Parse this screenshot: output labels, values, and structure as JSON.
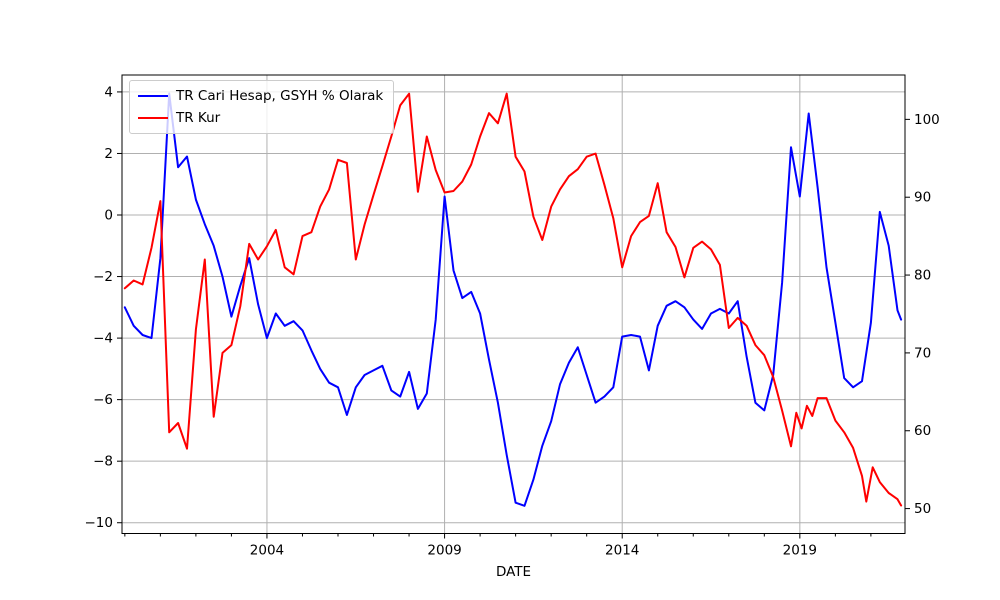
{
  "chart_data": {
    "type": "line",
    "title": "",
    "xlabel": "DATE",
    "grid": true,
    "legend_position": "upper-left",
    "xlim": [
      1999.92,
      2021.96
    ],
    "x_tick_values": [
      2004,
      2009,
      2014,
      2019
    ],
    "x_tick_labels": [
      "2004",
      "2009",
      "2014",
      "2019"
    ],
    "x_minor_tick_years": [
      2000,
      2001,
      2002,
      2003,
      2005,
      2006,
      2007,
      2008,
      2010,
      2011,
      2012,
      2013,
      2015,
      2016,
      2017,
      2018,
      2020,
      2021
    ],
    "left_axis": {
      "lim": [
        -10.35,
        4.55
      ],
      "tick_values": [
        4,
        2,
        0,
        -2,
        -4,
        -6,
        -8,
        -10
      ],
      "tick_labels": [
        "4",
        "2",
        "0",
        "−2",
        "−4",
        "−6",
        "−8",
        "−10"
      ]
    },
    "right_axis": {
      "lim": [
        46.8,
        105.7
      ],
      "tick_values": [
        100,
        90,
        80,
        70,
        60,
        50
      ],
      "tick_labels": [
        "100",
        "90",
        "80",
        "70",
        "60",
        "50"
      ]
    },
    "colors": {
      "grid": "#b0b0b0",
      "spine": "#000000",
      "blue_series": "#0000ff",
      "red_series": "#ff0000"
    },
    "series": [
      {
        "name": "TR Cari Hesap, GSYH % Olarak",
        "color": "#0000ff",
        "axis": "left",
        "points": [
          [
            2000.0,
            -3.0
          ],
          [
            2000.25,
            -3.6
          ],
          [
            2000.5,
            -3.9
          ],
          [
            2000.75,
            -4.0
          ],
          [
            2001.0,
            -1.4
          ],
          [
            2001.25,
            3.95
          ],
          [
            2001.5,
            1.55
          ],
          [
            2001.75,
            1.9
          ],
          [
            2002.0,
            0.5
          ],
          [
            2002.25,
            -0.3
          ],
          [
            2002.5,
            -1.0
          ],
          [
            2002.75,
            -2.0
          ],
          [
            2003.0,
            -3.3
          ],
          [
            2003.25,
            -2.3
          ],
          [
            2003.5,
            -1.4
          ],
          [
            2003.75,
            -2.9
          ],
          [
            2004.0,
            -4.0
          ],
          [
            2004.25,
            -3.2
          ],
          [
            2004.5,
            -3.6
          ],
          [
            2004.75,
            -3.45
          ],
          [
            2005.0,
            -3.75
          ],
          [
            2005.25,
            -4.4
          ],
          [
            2005.5,
            -5.0
          ],
          [
            2005.75,
            -5.45
          ],
          [
            2006.0,
            -5.6
          ],
          [
            2006.25,
            -6.5
          ],
          [
            2006.5,
            -5.6
          ],
          [
            2006.75,
            -5.2
          ],
          [
            2007.0,
            -5.05
          ],
          [
            2007.25,
            -4.9
          ],
          [
            2007.5,
            -5.7
          ],
          [
            2007.75,
            -5.9
          ],
          [
            2008.0,
            -5.1
          ],
          [
            2008.25,
            -6.3
          ],
          [
            2008.5,
            -5.8
          ],
          [
            2008.75,
            -3.4
          ],
          [
            2009.0,
            0.6
          ],
          [
            2009.25,
            -1.8
          ],
          [
            2009.5,
            -2.7
          ],
          [
            2009.75,
            -2.5
          ],
          [
            2010.0,
            -3.2
          ],
          [
            2010.25,
            -4.7
          ],
          [
            2010.5,
            -6.1
          ],
          [
            2010.75,
            -7.8
          ],
          [
            2011.0,
            -9.35
          ],
          [
            2011.25,
            -9.45
          ],
          [
            2011.5,
            -8.6
          ],
          [
            2011.75,
            -7.5
          ],
          [
            2012.0,
            -6.7
          ],
          [
            2012.25,
            -5.5
          ],
          [
            2012.5,
            -4.8
          ],
          [
            2012.75,
            -4.3
          ],
          [
            2013.0,
            -5.2
          ],
          [
            2013.25,
            -6.1
          ],
          [
            2013.5,
            -5.9
          ],
          [
            2013.75,
            -5.6
          ],
          [
            2014.0,
            -3.95
          ],
          [
            2014.25,
            -3.9
          ],
          [
            2014.5,
            -3.95
          ],
          [
            2014.75,
            -5.05
          ],
          [
            2015.0,
            -3.6
          ],
          [
            2015.25,
            -2.95
          ],
          [
            2015.5,
            -2.8
          ],
          [
            2015.75,
            -3.0
          ],
          [
            2016.0,
            -3.4
          ],
          [
            2016.25,
            -3.7
          ],
          [
            2016.5,
            -3.2
          ],
          [
            2016.75,
            -3.05
          ],
          [
            2017.0,
            -3.2
          ],
          [
            2017.25,
            -2.8
          ],
          [
            2017.5,
            -4.6
          ],
          [
            2017.75,
            -6.1
          ],
          [
            2018.0,
            -6.35
          ],
          [
            2018.25,
            -5.2
          ],
          [
            2018.5,
            -2.2
          ],
          [
            2018.75,
            2.2
          ],
          [
            2019.0,
            0.6
          ],
          [
            2019.25,
            3.3
          ],
          [
            2019.5,
            0.9
          ],
          [
            2019.75,
            -1.7
          ],
          [
            2020.0,
            -3.5
          ],
          [
            2020.25,
            -5.3
          ],
          [
            2020.5,
            -5.6
          ],
          [
            2020.75,
            -5.4
          ],
          [
            2021.0,
            -3.5
          ],
          [
            2021.25,
            0.1
          ],
          [
            2021.5,
            -1.0
          ],
          [
            2021.75,
            -3.1
          ],
          [
            2021.85,
            -3.4
          ]
        ]
      },
      {
        "name": "TR Kur",
        "color": "#ff0000",
        "axis": "right",
        "points": [
          [
            2000.0,
            78.3
          ],
          [
            2000.25,
            79.3
          ],
          [
            2000.5,
            78.8
          ],
          [
            2000.75,
            83.5
          ],
          [
            2001.0,
            89.5
          ],
          [
            2001.25,
            59.8
          ],
          [
            2001.5,
            61.0
          ],
          [
            2001.75,
            57.7
          ],
          [
            2002.0,
            73.0
          ],
          [
            2002.25,
            82.0
          ],
          [
            2002.5,
            61.8
          ],
          [
            2002.75,
            70.0
          ],
          [
            2003.0,
            71.0
          ],
          [
            2003.25,
            76.0
          ],
          [
            2003.5,
            84.0
          ],
          [
            2003.75,
            82.0
          ],
          [
            2004.0,
            83.7
          ],
          [
            2004.25,
            85.8
          ],
          [
            2004.5,
            81.0
          ],
          [
            2004.75,
            80.1
          ],
          [
            2005.0,
            85.0
          ],
          [
            2005.25,
            85.5
          ],
          [
            2005.5,
            88.8
          ],
          [
            2005.75,
            91.0
          ],
          [
            2006.0,
            94.8
          ],
          [
            2006.25,
            94.4
          ],
          [
            2006.5,
            82.0
          ],
          [
            2006.75,
            86.5
          ],
          [
            2007.0,
            90.3
          ],
          [
            2007.25,
            94.0
          ],
          [
            2007.5,
            97.8
          ],
          [
            2007.75,
            101.8
          ],
          [
            2008.0,
            103.3
          ],
          [
            2008.25,
            90.7
          ],
          [
            2008.5,
            97.8
          ],
          [
            2008.75,
            93.5
          ],
          [
            2009.0,
            90.6
          ],
          [
            2009.25,
            90.8
          ],
          [
            2009.5,
            92.0
          ],
          [
            2009.75,
            94.2
          ],
          [
            2010.0,
            97.8
          ],
          [
            2010.25,
            100.8
          ],
          [
            2010.5,
            99.5
          ],
          [
            2010.75,
            103.3
          ],
          [
            2011.0,
            95.2
          ],
          [
            2011.25,
            93.3
          ],
          [
            2011.5,
            87.5
          ],
          [
            2011.75,
            84.5
          ],
          [
            2012.0,
            88.8
          ],
          [
            2012.25,
            91.0
          ],
          [
            2012.5,
            92.7
          ],
          [
            2012.75,
            93.6
          ],
          [
            2013.0,
            95.2
          ],
          [
            2013.25,
            95.6
          ],
          [
            2013.5,
            91.6
          ],
          [
            2013.75,
            87.3
          ],
          [
            2014.0,
            81.0
          ],
          [
            2014.25,
            85.0
          ],
          [
            2014.5,
            86.8
          ],
          [
            2014.75,
            87.6
          ],
          [
            2015.0,
            91.8
          ],
          [
            2015.25,
            85.5
          ],
          [
            2015.5,
            83.6
          ],
          [
            2015.75,
            79.7
          ],
          [
            2016.0,
            83.5
          ],
          [
            2016.25,
            84.3
          ],
          [
            2016.5,
            83.3
          ],
          [
            2016.75,
            81.3
          ],
          [
            2017.0,
            73.2
          ],
          [
            2017.25,
            74.5
          ],
          [
            2017.5,
            73.5
          ],
          [
            2017.75,
            71.0
          ],
          [
            2018.0,
            69.7
          ],
          [
            2018.25,
            66.9
          ],
          [
            2018.5,
            62.6
          ],
          [
            2018.75,
            58.0
          ],
          [
            2018.9,
            62.3
          ],
          [
            2019.05,
            60.3
          ],
          [
            2019.2,
            63.2
          ],
          [
            2019.35,
            61.9
          ],
          [
            2019.5,
            64.2
          ],
          [
            2019.75,
            64.2
          ],
          [
            2020.0,
            61.3
          ],
          [
            2020.25,
            59.8
          ],
          [
            2020.5,
            57.8
          ],
          [
            2020.75,
            54.2
          ],
          [
            2020.87,
            50.9
          ],
          [
            2021.05,
            55.3
          ],
          [
            2021.25,
            53.4
          ],
          [
            2021.5,
            52.0
          ],
          [
            2021.75,
            51.2
          ],
          [
            2021.85,
            50.4
          ]
        ]
      }
    ]
  }
}
